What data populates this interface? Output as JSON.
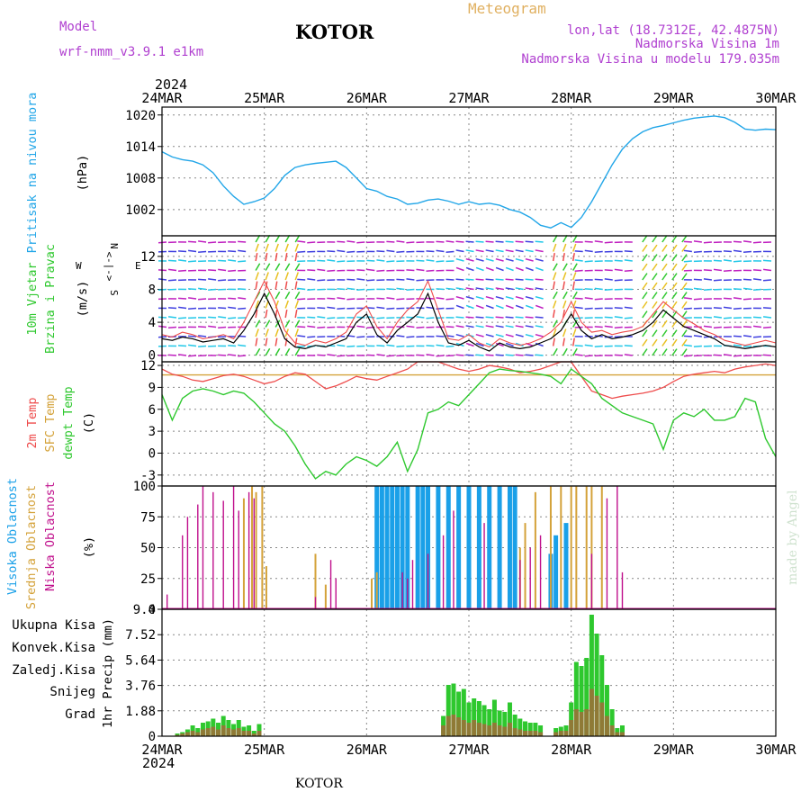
{
  "header": {
    "model_label": "Model",
    "model_value": "wrf-nmm_v3.9.1 e1km",
    "title": "KOTOR",
    "meteogram": "Meteogram",
    "lonlat": "lon,lat (18.7312E, 42.4875N)",
    "elev": "Nadmorska Visina 1m",
    "elev_model": "Nadmorska Visina u modelu 179.035m",
    "year_top": "2024",
    "year_bottom": "2024",
    "footer": "KOTOR",
    "watermark": "made by Angel"
  },
  "colors": {
    "pressure": "#22a6e8",
    "temp2m": "#ee4c4c",
    "sfc": "#d4a23a",
    "dewpt": "#2ec82e",
    "high": "#1aa0e8",
    "mid": "#d4a23a",
    "low": "#c0108c",
    "total": "#2ec82e",
    "conv": "#ee4c4c",
    "frz": "#f07828",
    "snow": "#4040e0",
    "hail": "#22c8c8",
    "wind_label": "#2ec82e",
    "compass": "#c030c0"
  },
  "chart_data": [
    {
      "panel": "pressure",
      "type": "line",
      "ylabel": "Pritisak na nivou mora",
      "unit": "(hPa)",
      "y_ticks": [
        1002,
        1008,
        1014,
        1020
      ],
      "ylim": [
        997,
        1021.5
      ],
      "x": [
        0.0,
        0.1,
        0.2,
        0.3,
        0.4,
        0.5,
        0.6,
        0.7,
        0.8,
        0.9,
        1.0,
        1.1,
        1.2,
        1.3,
        1.4,
        1.5,
        1.6,
        1.7,
        1.8,
        1.9,
        2.0,
        2.1,
        2.2,
        2.3,
        2.4,
        2.5,
        2.6,
        2.7,
        2.8,
        2.9,
        3.0,
        3.1,
        3.2,
        3.3,
        3.4,
        3.5,
        3.6,
        3.7,
        3.8,
        3.9,
        4.0,
        4.1,
        4.2,
        4.3,
        4.4,
        4.5,
        4.6,
        4.7,
        4.8,
        4.9,
        5.0,
        5.1,
        5.2,
        5.3,
        5.4,
        5.5,
        5.6,
        5.7,
        5.8,
        5.9,
        6.0
      ],
      "values": [
        1013.0,
        1012.0,
        1011.5,
        1011.2,
        1010.5,
        1009.0,
        1006.5,
        1004.5,
        1003.0,
        1003.5,
        1004.2,
        1006.0,
        1008.5,
        1010.0,
        1010.5,
        1010.8,
        1011.0,
        1011.2,
        1010.0,
        1008.0,
        1006.0,
        1005.5,
        1004.5,
        1004.0,
        1003.0,
        1003.2,
        1003.8,
        1004.0,
        1003.6,
        1003.0,
        1003.5,
        1003.0,
        1003.2,
        1002.8,
        1002.0,
        1001.5,
        1000.5,
        999.0,
        998.5,
        999.5,
        998.6,
        1000.5,
        1003.5,
        1007.0,
        1010.5,
        1013.5,
        1015.5,
        1016.8,
        1017.6,
        1018.0,
        1018.5,
        1019.0,
        1019.4,
        1019.6,
        1019.8,
        1019.5,
        1018.6,
        1017.3,
        1017.1,
        1017.3,
        1017.2
      ]
    },
    {
      "panel": "wind",
      "type": "line",
      "ylabel": "10m Vjetar",
      "ylabel2": "Brzina i Pravac",
      "unit": "(m/s)",
      "y_ticks": [
        0,
        4,
        8,
        12
      ],
      "ylim": [
        -0.8,
        14.5
      ],
      "compass": {
        "n": "N",
        "e": "E",
        "w": "W",
        "s": "S",
        "arrows": "<-|->"
      },
      "x": [
        0.0,
        0.1,
        0.2,
        0.3,
        0.4,
        0.5,
        0.6,
        0.7,
        0.8,
        0.9,
        1.0,
        1.1,
        1.2,
        1.3,
        1.4,
        1.5,
        1.6,
        1.7,
        1.8,
        1.9,
        2.0,
        2.1,
        2.2,
        2.3,
        2.4,
        2.5,
        2.6,
        2.7,
        2.8,
        2.9,
        3.0,
        3.1,
        3.2,
        3.3,
        3.4,
        3.5,
        3.6,
        3.7,
        3.8,
        3.9,
        4.0,
        4.1,
        4.2,
        4.3,
        4.4,
        4.5,
        4.6,
        4.7,
        4.8,
        4.9,
        5.0,
        5.1,
        5.2,
        5.3,
        5.4,
        5.5,
        5.6,
        5.7,
        5.8,
        5.9,
        6.0
      ],
      "values": [
        2.0,
        1.8,
        2.2,
        2.0,
        1.6,
        1.8,
        2.0,
        1.5,
        3.0,
        5.0,
        7.5,
        5.0,
        2.0,
        1.0,
        0.8,
        1.2,
        1.0,
        1.5,
        2.0,
        4.0,
        5.0,
        2.5,
        1.5,
        3.0,
        4.0,
        5.0,
        7.5,
        4.0,
        1.5,
        1.2,
        1.8,
        1.0,
        0.5,
        1.5,
        1.0,
        0.8,
        1.0,
        1.5,
        2.0,
        3.0,
        5.0,
        3.0,
        2.0,
        2.5,
        2.0,
        2.2,
        2.5,
        3.0,
        4.0,
        5.5,
        4.5,
        3.5,
        3.0,
        2.5,
        2.0,
        1.2,
        1.0,
        0.8,
        1.0,
        1.2,
        1.0
      ],
      "gust_values": [
        2.5,
        2.2,
        2.8,
        2.5,
        2.0,
        2.2,
        2.5,
        2.0,
        4.0,
        6.5,
        9.0,
        6.5,
        3.0,
        1.5,
        1.2,
        1.8,
        1.5,
        2.0,
        2.8,
        5.0,
        6.0,
        3.5,
        2.0,
        4.0,
        5.5,
        6.5,
        9.0,
        5.5,
        2.0,
        1.8,
        2.5,
        1.5,
        1.0,
        2.0,
        1.5,
        1.2,
        1.5,
        2.0,
        2.8,
        4.0,
        6.5,
        4.0,
        2.8,
        3.0,
        2.5,
        2.8,
        3.0,
        3.5,
        5.0,
        6.5,
        5.5,
        4.5,
        3.8,
        3.0,
        2.5,
        1.8,
        1.5,
        1.2,
        1.5,
        1.8,
        1.5
      ]
    },
    {
      "panel": "temperature",
      "type": "line",
      "ylabel": "2m Temp",
      "ylabel2": "SFC Temp",
      "ylabel3": "dewpt Temp",
      "unit": "(C)",
      "y_ticks": [
        -3,
        0,
        3,
        6,
        9,
        12
      ],
      "ylim": [
        -4.5,
        12.5
      ],
      "x": [
        0.0,
        0.1,
        0.2,
        0.3,
        0.4,
        0.5,
        0.6,
        0.7,
        0.8,
        0.9,
        1.0,
        1.1,
        1.2,
        1.3,
        1.4,
        1.5,
        1.6,
        1.7,
        1.8,
        1.9,
        2.0,
        2.1,
        2.2,
        2.3,
        2.4,
        2.5,
        2.6,
        2.7,
        2.8,
        2.9,
        3.0,
        3.1,
        3.2,
        3.3,
        3.4,
        3.5,
        3.6,
        3.7,
        3.8,
        3.9,
        4.0,
        4.1,
        4.2,
        4.3,
        4.4,
        4.5,
        4.6,
        4.7,
        4.8,
        4.9,
        5.0,
        5.1,
        5.2,
        5.3,
        5.4,
        5.5,
        5.6,
        5.7,
        5.8,
        5.9,
        6.0
      ],
      "temp2m": [
        11.5,
        10.8,
        10.5,
        10.0,
        9.8,
        10.2,
        10.6,
        10.8,
        10.5,
        10.0,
        9.5,
        9.8,
        10.5,
        11.0,
        10.8,
        9.8,
        8.8,
        9.2,
        9.8,
        10.5,
        10.2,
        10.0,
        10.5,
        11.0,
        11.5,
        12.5,
        12.8,
        12.5,
        12.0,
        11.5,
        11.2,
        11.5,
        12.0,
        11.8,
        11.5,
        11.0,
        11.2,
        11.5,
        12.0,
        12.5,
        12.5,
        10.5,
        8.5,
        8.0,
        7.5,
        7.8,
        8.0,
        8.2,
        8.5,
        9.0,
        9.8,
        10.5,
        10.8,
        11.0,
        11.2,
        11.0,
        11.5,
        11.8,
        12.0,
        12.2,
        12.0
      ],
      "sfc": [
        10.7,
        10.7,
        10.7,
        10.7,
        10.7,
        10.7,
        10.7,
        10.7,
        10.7,
        10.7,
        10.7,
        10.7,
        10.7,
        10.7,
        10.7,
        10.7,
        10.7,
        10.7,
        10.7,
        10.7,
        10.7,
        10.7,
        10.7,
        10.7,
        10.7,
        10.7,
        10.7,
        10.7,
        10.7,
        10.7,
        10.7,
        10.7,
        10.7,
        10.7,
        10.7,
        10.7,
        10.7,
        10.7,
        10.7,
        10.7,
        10.7,
        10.7,
        10.7,
        10.7,
        10.7,
        10.7,
        10.7,
        10.7,
        10.7,
        10.7,
        10.7,
        10.7,
        10.7,
        10.7,
        10.7,
        10.7,
        10.7,
        10.7,
        10.7,
        10.7,
        10.7
      ],
      "dewpt": [
        8.0,
        4.5,
        7.5,
        8.5,
        8.8,
        8.5,
        8.0,
        8.5,
        8.2,
        7.0,
        5.5,
        4.0,
        3.0,
        1.0,
        -1.5,
        -3.5,
        -2.5,
        -3.0,
        -1.5,
        -0.5,
        -1.0,
        -1.8,
        -0.5,
        1.5,
        -2.5,
        0.5,
        5.5,
        6.0,
        7.0,
        6.5,
        8.0,
        9.5,
        11.0,
        11.5,
        11.3,
        11.2,
        11.0,
        10.8,
        10.5,
        9.5,
        11.5,
        10.5,
        9.5,
        7.5,
        6.5,
        5.5,
        5.0,
        4.5,
        4.0,
        0.5,
        4.5,
        5.5,
        5.0,
        6.0,
        4.5,
        4.5,
        5.0,
        7.5,
        7.0,
        2.0,
        -0.5
      ]
    },
    {
      "panel": "clouds",
      "type": "bar",
      "ylabel": "Visoka Oblacnost",
      "ylabel2": "Srednja Oblacnost",
      "ylabel3": "Niska Oblacnost",
      "unit": "(%)",
      "y_ticks": [
        0,
        25,
        50,
        75,
        100
      ],
      "ylim": [
        0,
        100
      ],
      "low": [
        [
          0.05,
          12
        ],
        [
          0.2,
          60
        ],
        [
          0.25,
          75
        ],
        [
          0.35,
          85
        ],
        [
          0.4,
          100
        ],
        [
          0.5,
          95
        ],
        [
          0.6,
          88
        ],
        [
          0.7,
          100
        ],
        [
          0.75,
          80
        ],
        [
          0.85,
          95
        ],
        [
          0.9,
          90
        ],
        [
          1.5,
          10
        ],
        [
          1.65,
          40
        ],
        [
          1.7,
          25
        ],
        [
          2.35,
          30
        ],
        [
          2.4,
          25
        ],
        [
          2.45,
          40
        ],
        [
          2.6,
          45
        ],
        [
          2.75,
          60
        ],
        [
          2.85,
          80
        ],
        [
          3.15,
          70
        ],
        [
          3.5,
          40
        ],
        [
          3.6,
          50
        ],
        [
          3.7,
          60
        ],
        [
          4.2,
          45
        ],
        [
          4.35,
          90
        ],
        [
          4.45,
          100
        ],
        [
          4.5,
          30
        ]
      ],
      "mid": [
        [
          0.8,
          90
        ],
        [
          0.88,
          100
        ],
        [
          0.92,
          95
        ],
        [
          0.98,
          100
        ],
        [
          1.02,
          35
        ],
        [
          1.5,
          45
        ],
        [
          1.6,
          20
        ],
        [
          2.05,
          25
        ],
        [
          2.1,
          30
        ],
        [
          3.5,
          50
        ],
        [
          3.55,
          70
        ],
        [
          3.65,
          95
        ],
        [
          3.8,
          100
        ],
        [
          3.9,
          100
        ],
        [
          4.0,
          100
        ],
        [
          4.05,
          100
        ],
        [
          4.15,
          100
        ],
        [
          4.2,
          100
        ],
        [
          4.3,
          100
        ]
      ],
      "high": [
        [
          2.1,
          100
        ],
        [
          2.15,
          100
        ],
        [
          2.2,
          100
        ],
        [
          2.25,
          100
        ],
        [
          2.3,
          100
        ],
        [
          2.35,
          100
        ],
        [
          2.4,
          100
        ],
        [
          2.5,
          100
        ],
        [
          2.55,
          100
        ],
        [
          2.6,
          100
        ],
        [
          2.7,
          100
        ],
        [
          2.8,
          100
        ],
        [
          2.9,
          100
        ],
        [
          3.0,
          100
        ],
        [
          3.1,
          100
        ],
        [
          3.2,
          100
        ],
        [
          3.3,
          100
        ],
        [
          3.4,
          100
        ],
        [
          3.45,
          100
        ],
        [
          3.8,
          45
        ],
        [
          3.85,
          60
        ],
        [
          3.95,
          70
        ]
      ]
    },
    {
      "panel": "precip",
      "type": "bar",
      "ylabel": "1hr Precip (mm)",
      "legend": [
        "Ukupna Kisa",
        "Konvek.Kisa",
        "Zaledj.Kisa",
        "Snijeg",
        "Grad"
      ],
      "y_ticks": [
        "0",
        "1.88",
        "3.76",
        "5.64",
        "7.52",
        "9.4"
      ],
      "ylim": [
        0,
        9.4
      ],
      "x": [
        0.15,
        0.2,
        0.25,
        0.3,
        0.35,
        0.4,
        0.45,
        0.5,
        0.55,
        0.6,
        0.65,
        0.7,
        0.75,
        0.8,
        0.85,
        0.9,
        0.95,
        2.75,
        2.8,
        2.85,
        2.9,
        2.95,
        3.0,
        3.05,
        3.1,
        3.15,
        3.2,
        3.25,
        3.3,
        3.35,
        3.4,
        3.45,
        3.5,
        3.55,
        3.6,
        3.65,
        3.7,
        3.85,
        3.9,
        3.95,
        4.0,
        4.05,
        4.1,
        4.15,
        4.2,
        4.25,
        4.3,
        4.35,
        4.4,
        4.45,
        4.5
      ],
      "total": [
        0.2,
        0.3,
        0.5,
        0.8,
        0.6,
        1.0,
        1.1,
        1.3,
        1.0,
        1.5,
        1.2,
        0.9,
        1.2,
        0.7,
        0.8,
        0.4,
        0.9,
        1.5,
        3.8,
        3.9,
        3.3,
        3.5,
        2.5,
        2.8,
        2.6,
        2.3,
        2.0,
        2.7,
        1.9,
        1.8,
        2.5,
        1.6,
        1.3,
        1.1,
        1.0,
        1.0,
        0.8,
        0.6,
        0.7,
        0.8,
        2.5,
        5.5,
        5.2,
        5.8,
        9.0,
        7.6,
        6.0,
        3.8,
        2.0,
        0.6,
        0.8
      ],
      "conv": [
        0.1,
        0.2,
        0.3,
        0.4,
        0.3,
        0.5,
        0.6,
        0.7,
        0.5,
        0.8,
        0.6,
        0.5,
        0.6,
        0.4,
        0.4,
        0.2,
        0.4,
        0.8,
        1.5,
        1.6,
        1.4,
        1.2,
        1.0,
        1.2,
        1.0,
        0.9,
        0.8,
        1.0,
        0.8,
        0.7,
        1.0,
        0.6,
        0.5,
        0.4,
        0.4,
        0.4,
        0.3,
        0.3,
        0.4,
        0.4,
        1.2,
        2.0,
        1.8,
        2.0,
        3.5,
        3.0,
        2.5,
        1.5,
        0.8,
        0.3,
        0.3
      ]
    }
  ],
  "x_axis": {
    "labels": [
      "24MAR",
      "25MAR",
      "26MAR",
      "27MAR",
      "28MAR",
      "29MAR",
      "30MAR"
    ],
    "values": [
      0,
      1,
      2,
      3,
      4,
      5,
      6
    ],
    "xlim": [
      0,
      6
    ]
  }
}
